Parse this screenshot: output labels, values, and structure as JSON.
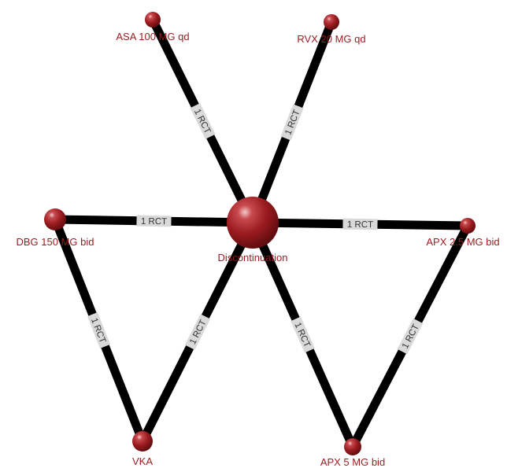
{
  "nodes": [
    {
      "id": "asa",
      "label": "ASA 100 MG qd"
    },
    {
      "id": "rvx",
      "label": "RVX 20 MG qd"
    },
    {
      "id": "dbg",
      "label": "DBG 150  MG bid"
    },
    {
      "id": "disc",
      "label": "Discontinuation"
    },
    {
      "id": "apx25",
      "label": "APX 2.5 MG bid"
    },
    {
      "id": "vka",
      "label": "VKA"
    },
    {
      "id": "apx5",
      "label": "APX 5 MG bid"
    }
  ],
  "edges": [
    {
      "from": "asa",
      "to": "disc",
      "label": "1 RCT"
    },
    {
      "from": "rvx",
      "to": "disc",
      "label": "1 RCT"
    },
    {
      "from": "dbg",
      "to": "disc",
      "label": "1 RCT"
    },
    {
      "from": "apx25",
      "to": "disc",
      "label": "1 RCT"
    },
    {
      "from": "dbg",
      "to": "vka",
      "label": "1 RCT"
    },
    {
      "from": "vka",
      "to": "disc",
      "label": "1 RCT"
    },
    {
      "from": "disc",
      "to": "apx5",
      "label": "1 RCT"
    },
    {
      "from": "apx25",
      "to": "apx5",
      "label": "1 RCT"
    }
  ],
  "colors": {
    "node_fill": "#9b1b1f",
    "node_label": "#9b1b1f",
    "edge": "#000000",
    "edge_label_bg": "#d9d9d9",
    "edge_label_text": "#333333"
  }
}
